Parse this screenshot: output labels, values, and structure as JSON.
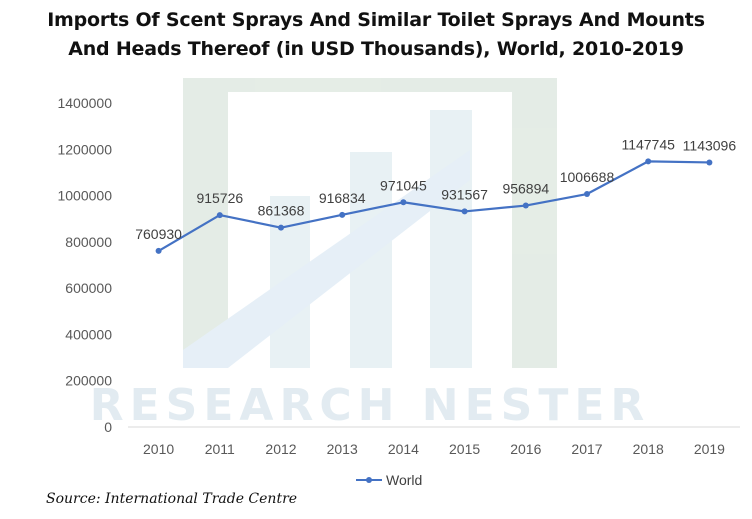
{
  "title_line1": "Imports Of Scent Sprays And Similar Toilet Sprays And Mounts",
  "title_line2": "And Heads Thereof (in USD Thousands), World, 2010-2019",
  "source": "Source: International Trade Centre",
  "watermark": "RESEARCH NESTER",
  "colors": {
    "series": "#4472C4",
    "axis_text": "#595959",
    "gridline": "#d9d9d9"
  },
  "chart_data": {
    "type": "line",
    "title": "Imports Of Scent Sprays And Similar Toilet Sprays And Mounts And Heads Thereof (in USD Thousands), World, 2010-2019",
    "categories": [
      "2010",
      "2011",
      "2012",
      "2013",
      "2014",
      "2015",
      "2016",
      "2017",
      "2018",
      "2019"
    ],
    "series": [
      {
        "name": "World",
        "values": [
          760930,
          915726,
          861368,
          916834,
          971045,
          931567,
          956894,
          1006688,
          1147745,
          1143096
        ]
      }
    ],
    "data_labels": [
      "760930",
      "915726",
      "861368",
      "916834",
      "971045",
      "931567",
      "956894",
      "1006688",
      "1147745",
      "1143096"
    ],
    "y_ticks": [
      0,
      200000,
      400000,
      600000,
      800000,
      1000000,
      1200000,
      1400000
    ],
    "y_tick_labels": [
      "0",
      "200000",
      "400000",
      "600000",
      "800000",
      "1000000",
      "1200000",
      "1400000"
    ],
    "ylim": [
      0,
      1400000
    ],
    "xlabel": "",
    "ylabel": "",
    "grid": false,
    "legend_position": "bottom"
  }
}
